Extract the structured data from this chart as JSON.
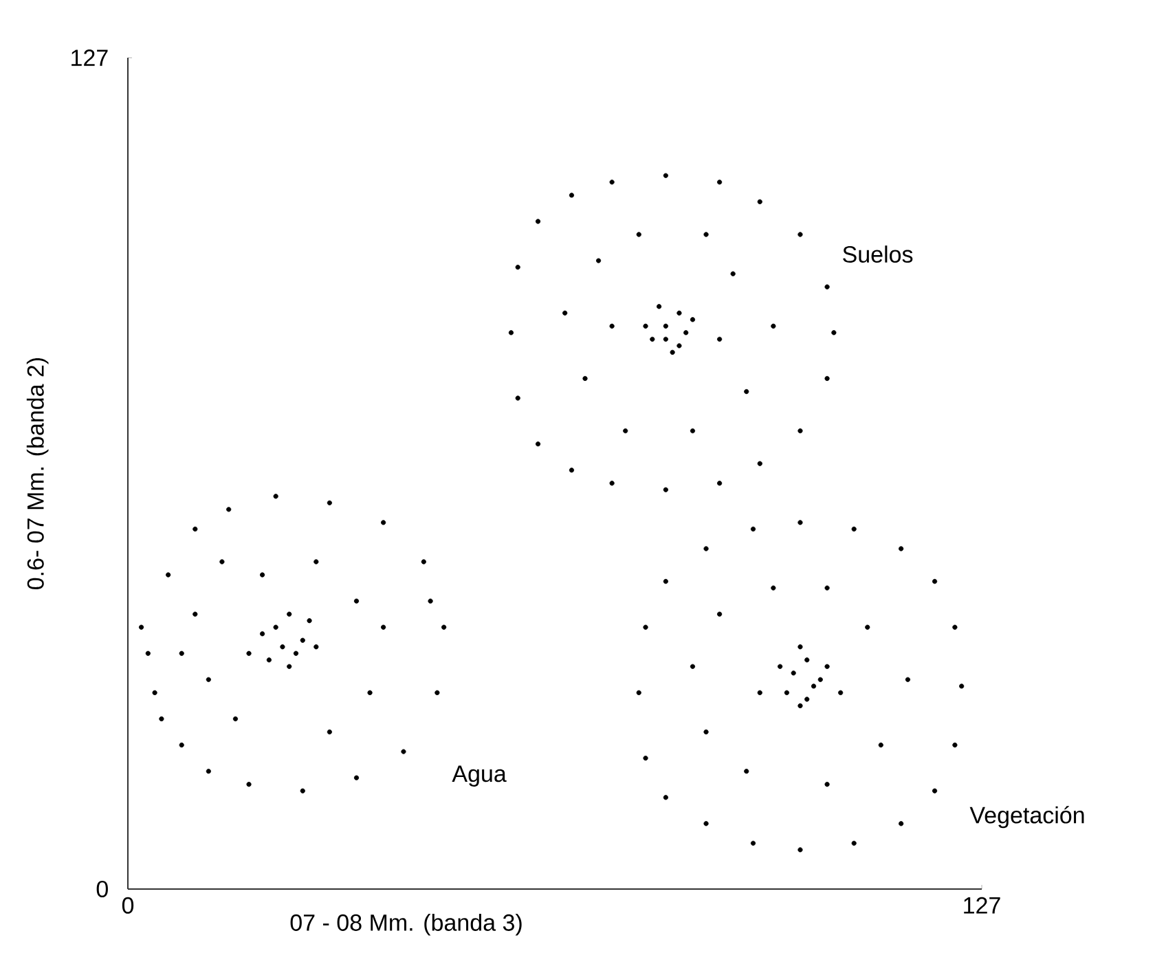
{
  "chart_data": {
    "type": "scatter",
    "xlabel": "07 - 08  Mm. (banda 3)",
    "ylabel": "0.6- 07 Mm. (banda 2)",
    "xlim": [
      0,
      127
    ],
    "ylim": [
      0,
      127
    ],
    "xticks": [
      0,
      127
    ],
    "yticks": [
      0,
      127
    ],
    "series": [
      {
        "name": "Agua",
        "color": "#000000",
        "x": [
          2,
          4,
          6,
          8,
          10,
          12,
          15,
          18,
          22,
          26,
          30,
          34,
          38,
          41,
          44,
          46,
          47,
          45,
          3,
          5,
          10,
          12,
          14,
          16,
          20,
          28,
          34,
          36,
          30,
          18,
          38,
          8,
          22,
          24,
          26,
          25,
          23,
          21,
          27,
          24,
          28,
          20
        ],
        "values": [
          40,
          30,
          48,
          22,
          55,
          18,
          58,
          16,
          60,
          15,
          59,
          17,
          56,
          21,
          50,
          30,
          40,
          44,
          36,
          26,
          42,
          32,
          50,
          26,
          48,
          50,
          44,
          30,
          24,
          36,
          40,
          36,
          40,
          42,
          38,
          36,
          37,
          35,
          41,
          34,
          37,
          39
        ]
      },
      {
        "name": "Suelos",
        "color": "#000000",
        "x": [
          57,
          58,
          58,
          61,
          61,
          66,
          66,
          72,
          72,
          80,
          80,
          88,
          88,
          94,
          94,
          100,
          100,
          104,
          104,
          105,
          65,
          68,
          70,
          74,
          76,
          86,
          90,
          92,
          84,
          96,
          72,
          88,
          80,
          82,
          78,
          81,
          83,
          79,
          84,
          77,
          82,
          80
        ],
        "values": [
          85,
          95,
          75,
          102,
          68,
          106,
          64,
          108,
          62,
          109,
          61,
          108,
          62,
          105,
          65,
          100,
          70,
          92,
          78,
          85,
          88,
          78,
          96,
          70,
          100,
          100,
          94,
          76,
          70,
          86,
          86,
          84,
          86,
          88,
          84,
          82,
          85,
          89,
          87,
          86,
          83,
          84
        ]
      },
      {
        "name": "Vegetación",
        "color": "#000000",
        "x": [
          76,
          77,
          77,
          80,
          80,
          86,
          86,
          93,
          93,
          100,
          100,
          108,
          108,
          115,
          115,
          120,
          120,
          123,
          123,
          124,
          84,
          86,
          88,
          92,
          96,
          104,
          110,
          112,
          104,
          116,
          94,
          106,
          99,
          101,
          103,
          98,
          100,
          102,
          97,
          104,
          100,
          101
        ],
        "values": [
          30,
          40,
          20,
          47,
          14,
          52,
          10,
          55,
          7,
          56,
          6,
          55,
          7,
          52,
          10,
          47,
          15,
          40,
          22,
          31,
          34,
          24,
          42,
          18,
          46,
          46,
          40,
          22,
          16,
          32,
          30,
          30,
          33,
          35,
          32,
          30,
          28,
          31,
          34,
          34,
          37,
          29
        ]
      }
    ]
  }
}
